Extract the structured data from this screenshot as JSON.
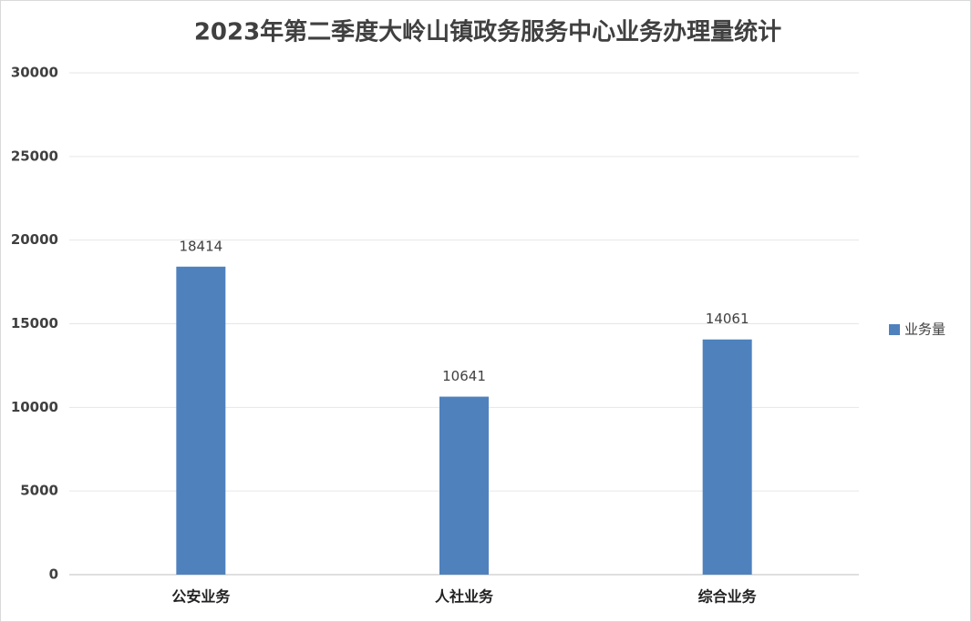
{
  "chart_data": {
    "type": "bar",
    "title": "2023年第二季度大岭山镇政务服务中心业务办理量统计",
    "categories": [
      "公安业务",
      "人社业务",
      "综合业务"
    ],
    "series": [
      {
        "name": "业务量",
        "color": "#4f81bd",
        "values": [
          18414,
          10641,
          14061
        ]
      }
    ],
    "ylim": [
      0,
      30000
    ],
    "yticks": [
      0,
      5000,
      10000,
      15000,
      20000,
      25000,
      30000
    ],
    "grid": true,
    "legend": "right",
    "data_labels": true
  }
}
